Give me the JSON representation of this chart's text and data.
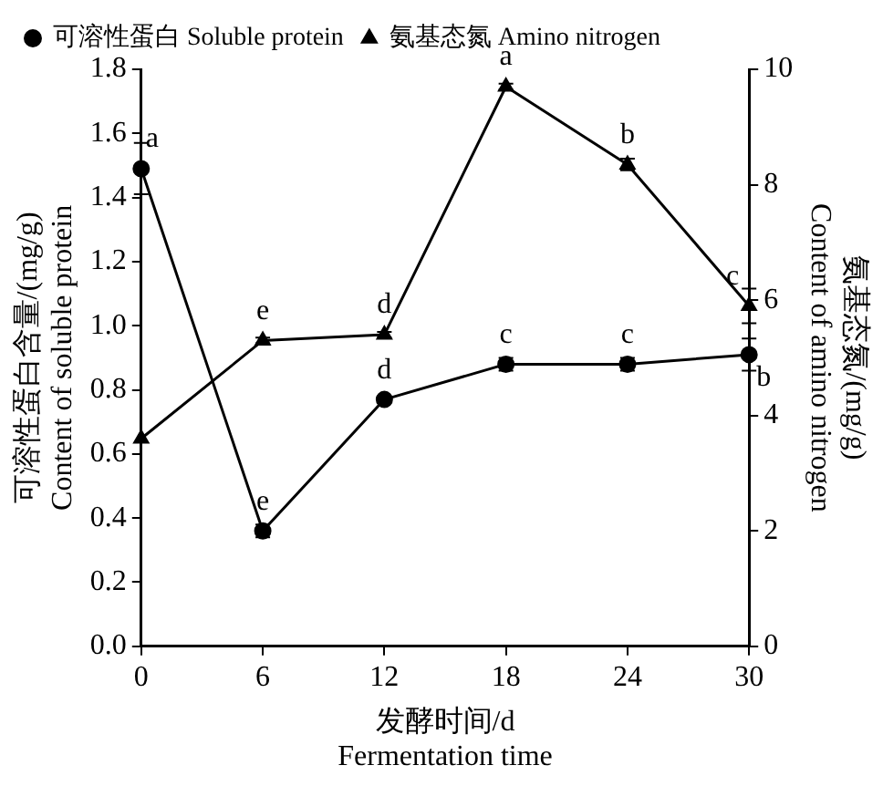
{
  "chart_data": {
    "type": "line",
    "xlabel": "发酵时间/d\nFermentation time",
    "ylabel": "可溶性蛋白含量/(mg/g)\nContent of soluble protein",
    "y2label": "氨基态氮/(mg/g)\nContent of amino nitrogen",
    "x": [
      0,
      6,
      12,
      18,
      24,
      30
    ],
    "series": [
      {
        "name": "可溶性蛋白 Soluble protein",
        "color": "#000000",
        "marker": "circle",
        "values": [
          1.49,
          0.36,
          0.77,
          0.88,
          0.88,
          0.91
        ],
        "errors": [
          0.08,
          0.02,
          0.01,
          0.02,
          0.02,
          0.05
        ],
        "value_labels": [
          "a",
          "e",
          "d",
          "c",
          "c",
          "b"
        ]
      },
      {
        "name": "氨基态氮 Amino nitrogen",
        "color": "#000000",
        "marker": "triangle",
        "axis": "y2",
        "values": [
          3.6,
          5.3,
          5.4,
          9.7,
          8.35,
          5.9
        ],
        "errors": [
          null,
          0.05,
          0.05,
          0.05,
          0.1,
          0.3
        ],
        "value_labels": [
          null,
          "e",
          "d",
          "a",
          "b",
          "c"
        ]
      }
    ],
    "xlim": [
      0,
      30
    ],
    "xticks": [
      0,
      6,
      12,
      18,
      24,
      30
    ],
    "ylim": [
      0,
      1.8
    ],
    "yticks": [
      {
        "value": 0,
        "label": "0.0"
      },
      0.2,
      0.4,
      0.6,
      0.8,
      {
        "value": 1,
        "label": "1.0"
      },
      1.2,
      1.4,
      1.6,
      1.8
    ],
    "y2lim": [
      0,
      10
    ],
    "y2ticks": [
      0,
      2,
      4,
      6,
      8,
      10
    ],
    "grid": false,
    "legend": "top",
    "line_style": "solid"
  }
}
